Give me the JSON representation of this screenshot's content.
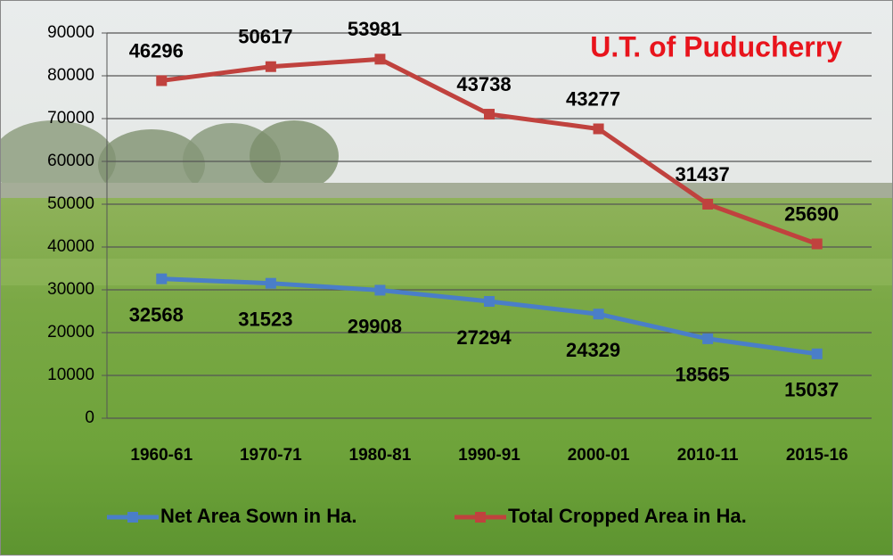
{
  "chart_data": {
    "type": "line",
    "title": "U.T. of Puducherry",
    "stacked": true,
    "categories": [
      "1960-61",
      "1970-71",
      "1980-81",
      "1990-91",
      "2000-01",
      "2010-11",
      "2015-16"
    ],
    "series": [
      {
        "name": "Net Area Sown in Ha.",
        "color": "#4a7ec8",
        "values": [
          32568,
          31523,
          29908,
          27294,
          24329,
          18565,
          15037
        ]
      },
      {
        "name": "Total Cropped Area in Ha.",
        "color": "#c0423e",
        "values": [
          46296,
          50617,
          53981,
          43738,
          43277,
          31437,
          25690
        ]
      }
    ],
    "ylim": [
      0,
      90000
    ],
    "yticks": [
      0,
      10000,
      20000,
      30000,
      40000,
      50000,
      60000,
      70000,
      80000,
      90000
    ],
    "grid": true,
    "legend": "bottom"
  }
}
